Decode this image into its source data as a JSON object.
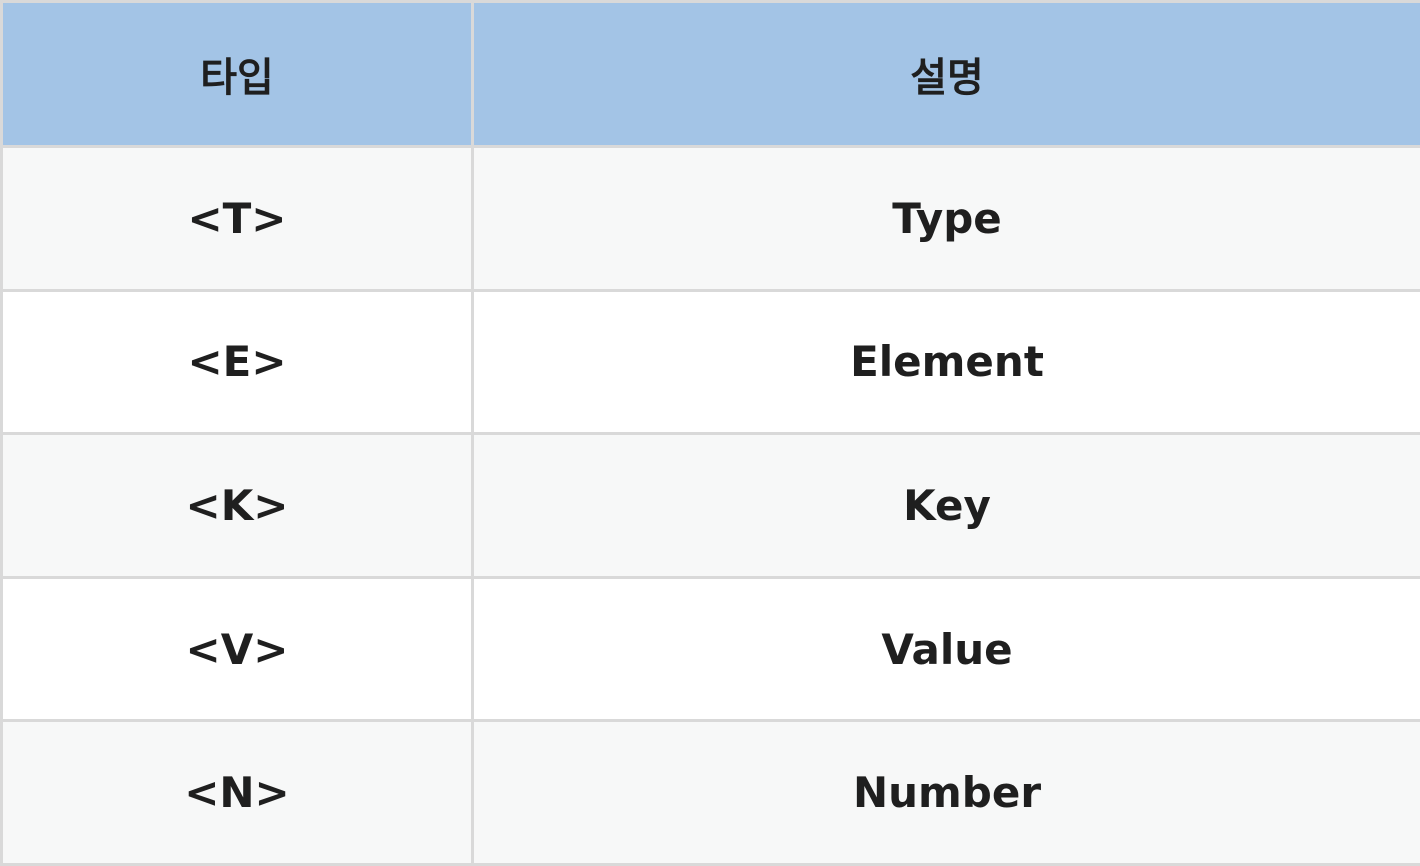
{
  "table": {
    "headers": [
      "타입",
      "설명"
    ],
    "rows": [
      {
        "type": "<T>",
        "desc": "Type"
      },
      {
        "type": "<E>",
        "desc": "Element"
      },
      {
        "type": "<K>",
        "desc": "Key"
      },
      {
        "type": "<V>",
        "desc": "Value"
      },
      {
        "type": "<N>",
        "desc": "Number"
      }
    ]
  },
  "colors": {
    "header_bg": "#a3c4e6",
    "row_alt_bg": "#f7f8f8",
    "row_bg": "#ffffff",
    "border": "#d9d9d9",
    "text": "#1f1f1f"
  }
}
